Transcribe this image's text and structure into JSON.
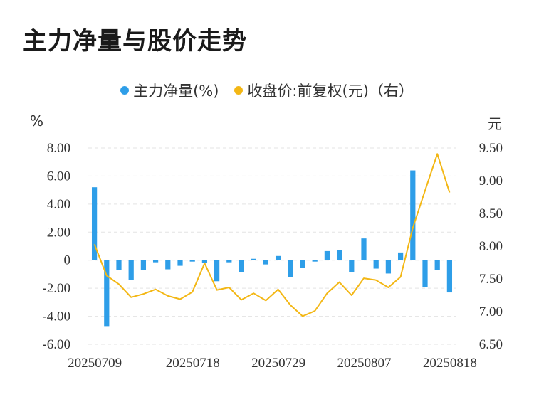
{
  "title": "主力净量与股价走势",
  "legend": {
    "series1_label": "主力净量(%)",
    "series2_label": "收盘价:前复权(元)（右）"
  },
  "units": {
    "left": "%",
    "right": "元"
  },
  "colors": {
    "bar": "#2e9ee8",
    "line": "#f3b715",
    "grid": "#e3e3e3",
    "text": "#333333"
  },
  "chart_data": {
    "type": "bar+line",
    "x_ticks": [
      "20250709",
      "20250718",
      "20250729",
      "20250807",
      "20250818"
    ],
    "y_left_ticks": [
      "8.00",
      "6.00",
      "4.00",
      "2.00",
      "0",
      "-2.00",
      "-4.00",
      "-6.00"
    ],
    "y_right_ticks": [
      "9.50",
      "9.00",
      "8.50",
      "8.00",
      "7.50",
      "7.00",
      "6.50"
    ],
    "ylim_left": [
      -6,
      8
    ],
    "ylim_right": [
      6.5,
      9.5
    ],
    "grid": true,
    "legend_position": "top",
    "series": [
      {
        "name": "主力净量(%)",
        "type": "bar",
        "axis": "left",
        "values": [
          5.2,
          -4.7,
          -0.7,
          -1.4,
          -0.7,
          -0.15,
          -0.65,
          -0.4,
          -0.1,
          -0.2,
          -1.5,
          -0.15,
          -0.85,
          0.1,
          -0.3,
          0.3,
          -1.2,
          -0.55,
          -0.1,
          0.65,
          0.7,
          -0.85,
          1.55,
          -0.6,
          -0.95,
          0.55,
          6.4,
          -1.9,
          -0.7,
          -2.3
        ]
      },
      {
        "name": "收盘价:前复权(元)（右）",
        "type": "line",
        "axis": "right",
        "values": [
          8.03,
          7.55,
          7.42,
          7.22,
          7.27,
          7.34,
          7.24,
          7.19,
          7.3,
          7.74,
          7.33,
          7.37,
          7.18,
          7.28,
          7.17,
          7.34,
          7.1,
          6.93,
          7.01,
          7.28,
          7.45,
          7.25,
          7.51,
          7.48,
          7.37,
          7.53,
          8.28,
          8.85,
          9.41,
          8.82
        ]
      }
    ]
  }
}
